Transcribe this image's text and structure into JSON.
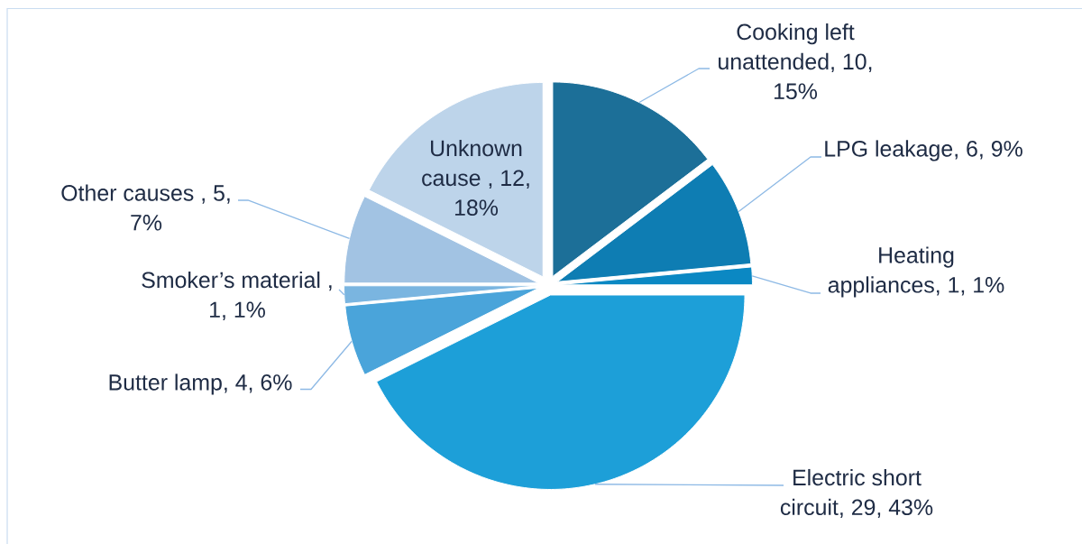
{
  "chart_data": {
    "type": "pie",
    "categories": [
      "Cooking left unattended, 10, 15%",
      "LPG leakage, 6, 9%",
      "Heating appliances, 1, 1%",
      "Electric short circuit, 29, 43%",
      "Butter lamp, 4, 6%",
      "Smoker’s material , 1, 1%",
      "Other causes , 5, 7%",
      "Unknown cause , 12, 18%"
    ],
    "values": [
      10,
      6,
      1,
      29,
      4,
      1,
      5,
      12
    ],
    "colors": [
      "#1c6f98",
      "#0e7db3",
      "#0b88c3",
      "#1d9fd8",
      "#4aa4da",
      "#7ab5e0",
      "#a2c3e3",
      "#bdd4ea"
    ]
  }
}
